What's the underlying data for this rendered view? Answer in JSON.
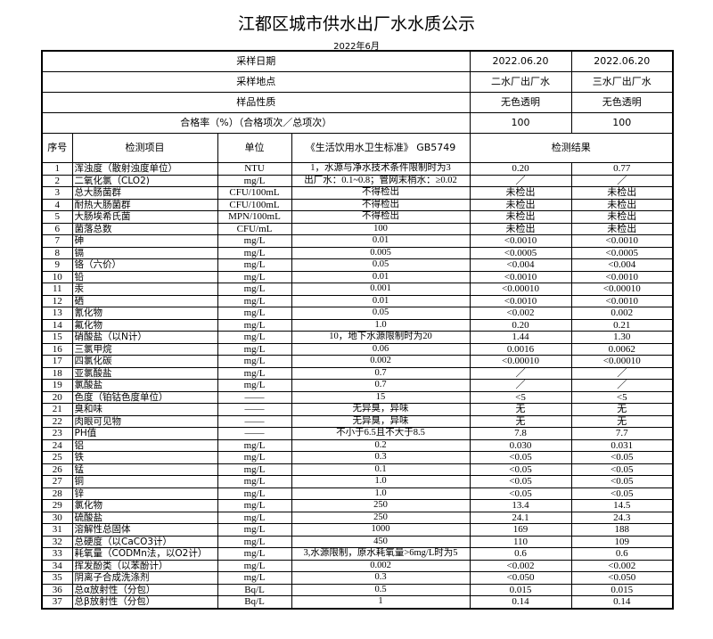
{
  "title": "江都区城市供水出厂水水质公示",
  "subtitle": "2022年6月",
  "header_rows": [
    {
      "label": "采样日期",
      "values": [
        "2022.06.20",
        "2022.06.20"
      ]
    },
    {
      "label": "采样地点",
      "values": [
        "二水厂出厂水",
        "三水厂出厂水"
      ]
    },
    {
      "label": "样品性质",
      "values": [
        "无色透明",
        "无色透明"
      ]
    },
    {
      "label": "合格率（%）（合格项次／总项次）",
      "values": [
        "100",
        "100"
      ]
    }
  ],
  "columns": {
    "seq": "序号",
    "item": "检测项目",
    "unit": "单位",
    "standard": "《生活饮用水卫生标准》 GB5749",
    "result": "检测结果"
  },
  "rows": [
    [
      "1",
      "浑浊度（散射浊度单位）",
      "NTU",
      "1，水源与净水技术条件限制时为3",
      "0.20",
      "0.77"
    ],
    [
      "2",
      "二氧化氯（CLO2)",
      "mg/L",
      "出厂水：0.1~0.8；管网末梢水：≥0.02",
      "／",
      "／"
    ],
    [
      "3",
      "总大肠菌群",
      "CFU/100mL",
      "不得检出",
      "未检出",
      "未检出"
    ],
    [
      "4",
      "耐热大肠菌群",
      "CFU/100mL",
      "不得检出",
      "未检出",
      "未检出"
    ],
    [
      "5",
      "大肠埃希氏菌",
      "MPN/100mL",
      "不得检出",
      "未检出",
      "未检出"
    ],
    [
      "6",
      "菌落总数",
      "CFU/mL",
      "100",
      "未检出",
      "未检出"
    ],
    [
      "7",
      "砷",
      "mg/L",
      "0.01",
      "<0.0010",
      "<0.0010"
    ],
    [
      "8",
      "镉",
      "mg/L",
      "0.005",
      "<0.0005",
      "<0.0005"
    ],
    [
      "9",
      "铬（六价）",
      "mg/L",
      "0.05",
      "<0.004",
      "<0.004"
    ],
    [
      "10",
      "铅",
      "mg/L",
      "0.01",
      "<0.0010",
      "<0.0010"
    ],
    [
      "11",
      "汞",
      "mg/L",
      "0.001",
      "<0.00010",
      "<0.00010"
    ],
    [
      "12",
      "硒",
      "mg/L",
      "0.01",
      "<0.0010",
      "<0.0010"
    ],
    [
      "13",
      "氰化物",
      "mg/L",
      "0.05",
      "<0.002",
      "0.002"
    ],
    [
      "14",
      "氟化物",
      "mg/L",
      "1.0",
      "0.20",
      "0.21"
    ],
    [
      "15",
      "硝酸盐（以N计）",
      "mg/L",
      "10，地下水源限制时为20",
      "1.44",
      "1.30"
    ],
    [
      "16",
      "三氯甲烷",
      "mg/L",
      "0.06",
      "0.0016",
      "0.0062"
    ],
    [
      "17",
      "四氯化碳",
      "mg/L",
      "0.002",
      "<0.00010",
      "<0.00010"
    ],
    [
      "18",
      "亚氯酸盐",
      "mg/L",
      "0.7",
      "／",
      "／"
    ],
    [
      "19",
      "氯酸盐",
      "mg/L",
      "0.7",
      "／",
      "／"
    ],
    [
      "20",
      "色度（铂钴色度单位）",
      "——",
      "15",
      "<5",
      "<5"
    ],
    [
      "21",
      "臭和味",
      "——",
      "无异臭，异味",
      "无",
      "无"
    ],
    [
      "22",
      "肉眼可见物",
      "——",
      "无异臭，异味",
      "无",
      "无"
    ],
    [
      "23",
      "PH值",
      "——",
      "不小于6.5且不大于8.5",
      "7.8",
      "7.7"
    ],
    [
      "24",
      "铝",
      "mg/L",
      "0.2",
      "0.030",
      "0.031"
    ],
    [
      "25",
      "铁",
      "mg/L",
      "0.3",
      "<0.05",
      "<0.05"
    ],
    [
      "26",
      "锰",
      "mg/L",
      "0.1",
      "<0.05",
      "<0.05"
    ],
    [
      "27",
      "铜",
      "mg/L",
      "1.0",
      "<0.05",
      "<0.05"
    ],
    [
      "28",
      "锌",
      "mg/L",
      "1.0",
      "<0.05",
      "<0.05"
    ],
    [
      "29",
      "氯化物",
      "mg/L",
      "250",
      "13.4",
      "14.5"
    ],
    [
      "30",
      "硫酸盐",
      "mg/L",
      "250",
      "24.1",
      "24.3"
    ],
    [
      "31",
      "溶解性总固体",
      "mg/L",
      "1000",
      "169",
      "188"
    ],
    [
      "32",
      "总硬度（以CaCO3计）",
      "mg/L",
      "450",
      "110",
      "109"
    ],
    [
      "33",
      "耗氧量（CODMn法，以O2计）",
      "mg/L",
      "3,水源限制，原水耗氧量>6mg/L时为5",
      "0.6",
      "0.6"
    ],
    [
      "34",
      "挥发酚类（以苯酚计）",
      "mg/L",
      "0.002",
      "<0.002",
      "<0.002"
    ],
    [
      "35",
      "阴离子合成洗涤剂",
      "mg/L",
      "0.3",
      "<0.050",
      "<0.050"
    ],
    [
      "36",
      "总α放射性（分包）",
      "Bq/L",
      "0.5",
      "0.015",
      "0.015"
    ],
    [
      "37",
      "总β放射性（分包）",
      "Bq/L",
      "1",
      "0.14",
      "0.14"
    ]
  ]
}
